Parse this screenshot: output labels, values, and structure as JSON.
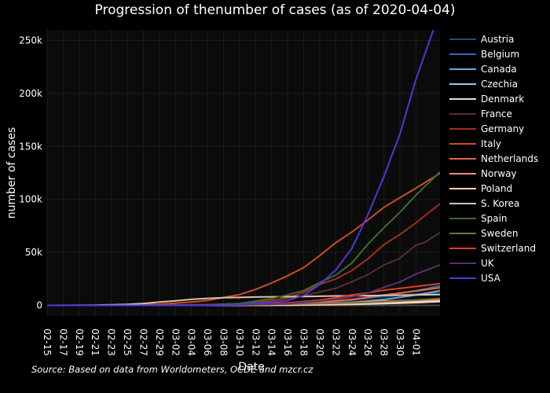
{
  "chart_data": {
    "type": "line",
    "title": "Progression of thenumber of cases (as of 2020-04-04)",
    "xlabel": "Date",
    "ylabel": "number of cases",
    "xlim": [
      "2020-02-15",
      "2020-04-04"
    ],
    "ylim": [
      -10000,
      260000
    ],
    "y_ticks": [
      0,
      50000,
      100000,
      150000,
      200000,
      250000
    ],
    "y_tick_labels": [
      "0",
      "50k",
      "100k",
      "150k",
      "200k",
      "250k"
    ],
    "x_tick_labels": [
      "02-15",
      "02-17",
      "02-19",
      "02-21",
      "02-23",
      "02-25",
      "02-27",
      "02-29",
      "03-02",
      "03-04",
      "03-06",
      "03-08",
      "03-10",
      "03-12",
      "03-14",
      "03-16",
      "03-18",
      "03-20",
      "03-22",
      "03-24",
      "03-26",
      "03-28",
      "03-30",
      "04-01"
    ],
    "grid": true,
    "legend_position": "right",
    "background": "#000000",
    "series": [
      {
        "name": "Austria",
        "color": "#1f4e79",
        "points": [
          [
            "03-01",
            10
          ],
          [
            "03-10",
            180
          ],
          [
            "03-16",
            1000
          ],
          [
            "03-20",
            2400
          ],
          [
            "03-24",
            5300
          ],
          [
            "03-28",
            8300
          ],
          [
            "04-01",
            10700
          ],
          [
            "04-04",
            11800
          ]
        ]
      },
      {
        "name": "Belgium",
        "color": "#2e6db4",
        "points": [
          [
            "03-01",
            2
          ],
          [
            "03-10",
            270
          ],
          [
            "03-16",
            1100
          ],
          [
            "03-20",
            2800
          ],
          [
            "03-24",
            4900
          ],
          [
            "03-28",
            9100
          ],
          [
            "04-01",
            13900
          ],
          [
            "04-04",
            18400
          ]
        ]
      },
      {
        "name": "Canada",
        "color": "#6fa8dc",
        "points": [
          [
            "03-01",
            20
          ],
          [
            "03-10",
            90
          ],
          [
            "03-16",
            420
          ],
          [
            "03-20",
            1000
          ],
          [
            "03-24",
            2800
          ],
          [
            "03-28",
            5600
          ],
          [
            "04-01",
            9700
          ],
          [
            "04-04",
            13900
          ]
        ]
      },
      {
        "name": "Czechia",
        "color": "#9fc5e8",
        "points": [
          [
            "03-01",
            3
          ],
          [
            "03-10",
            40
          ],
          [
            "03-16",
            300
          ],
          [
            "03-20",
            830
          ],
          [
            "03-24",
            1650
          ],
          [
            "03-28",
            2650
          ],
          [
            "04-01",
            3600
          ],
          [
            "04-04",
            4600
          ]
        ]
      },
      {
        "name": "Denmark",
        "color": "#cfe2f3",
        "points": [
          [
            "03-01",
            4
          ],
          [
            "03-10",
            260
          ],
          [
            "03-16",
            900
          ],
          [
            "03-20",
            1200
          ],
          [
            "03-24",
            1700
          ],
          [
            "03-28",
            2300
          ],
          [
            "04-01",
            3100
          ],
          [
            "04-04",
            4000
          ]
        ]
      },
      {
        "name": "France",
        "color": "#5a2e2e",
        "points": [
          [
            "02-15",
            12
          ],
          [
            "03-01",
            130
          ],
          [
            "03-06",
            650
          ],
          [
            "03-10",
            1800
          ],
          [
            "03-14",
            4500
          ],
          [
            "03-16",
            6600
          ],
          [
            "03-18",
            9100
          ],
          [
            "03-20",
            12600
          ],
          [
            "03-22",
            16000
          ],
          [
            "03-24",
            22300
          ],
          [
            "03-26",
            29100
          ],
          [
            "03-28",
            38100
          ],
          [
            "03-30",
            44500
          ],
          [
            "04-01",
            57000
          ],
          [
            "04-02",
            59000
          ],
          [
            "04-04",
            68600
          ]
        ]
      },
      {
        "name": "Germany",
        "color": "#a0301a",
        "points": [
          [
            "02-15",
            16
          ],
          [
            "03-01",
            130
          ],
          [
            "03-06",
            670
          ],
          [
            "03-10",
            1560
          ],
          [
            "03-14",
            4600
          ],
          [
            "03-16",
            7300
          ],
          [
            "03-18",
            12300
          ],
          [
            "03-20",
            19800
          ],
          [
            "03-22",
            24900
          ],
          [
            "03-24",
            32900
          ],
          [
            "03-26",
            43900
          ],
          [
            "03-28",
            57300
          ],
          [
            "03-30",
            66900
          ],
          [
            "04-01",
            77900
          ],
          [
            "04-04",
            96000
          ]
        ]
      },
      {
        "name": "Italy",
        "color": "#d04a20",
        "points": [
          [
            "02-15",
            3
          ],
          [
            "02-21",
            20
          ],
          [
            "02-23",
            155
          ],
          [
            "02-25",
            320
          ],
          [
            "02-27",
            650
          ],
          [
            "02-29",
            1130
          ],
          [
            "03-02",
            2000
          ],
          [
            "03-04",
            3100
          ],
          [
            "03-06",
            4640
          ],
          [
            "03-08",
            7400
          ],
          [
            "03-10",
            10150
          ],
          [
            "03-12",
            15100
          ],
          [
            "03-14",
            21160
          ],
          [
            "03-16",
            27980
          ],
          [
            "03-18",
            35700
          ],
          [
            "03-20",
            47000
          ],
          [
            "03-22",
            59140
          ],
          [
            "03-24",
            69200
          ],
          [
            "03-26",
            80600
          ],
          [
            "03-28",
            92500
          ],
          [
            "03-30",
            101700
          ],
          [
            "04-01",
            110600
          ],
          [
            "04-04",
            124600
          ]
        ]
      },
      {
        "name": "Netherlands",
        "color": "#e06848",
        "points": [
          [
            "03-01",
            10
          ],
          [
            "03-10",
            380
          ],
          [
            "03-16",
            1400
          ],
          [
            "03-20",
            2990
          ],
          [
            "03-24",
            5560
          ],
          [
            "03-28",
            9760
          ],
          [
            "04-01",
            13600
          ],
          [
            "04-04",
            16600
          ]
        ]
      },
      {
        "name": "Norway",
        "color": "#f08e88",
        "points": [
          [
            "03-01",
            15
          ],
          [
            "03-10",
            190
          ],
          [
            "03-16",
            1250
          ],
          [
            "03-20",
            1900
          ],
          [
            "03-24",
            2800
          ],
          [
            "03-28",
            4100
          ],
          [
            "04-01",
            4800
          ],
          [
            "04-04",
            5500
          ]
        ]
      },
      {
        "name": "Poland",
        "color": "#f7d2b0",
        "points": [
          [
            "03-04",
            1
          ],
          [
            "03-10",
            20
          ],
          [
            "03-16",
            150
          ],
          [
            "03-20",
            430
          ],
          [
            "03-24",
            900
          ],
          [
            "03-28",
            1640
          ],
          [
            "04-01",
            2550
          ],
          [
            "04-04",
            3600
          ]
        ]
      },
      {
        "name": "S. Korea",
        "color": "#d9c0aa",
        "points": [
          [
            "02-15",
            28
          ],
          [
            "02-19",
            51
          ],
          [
            "02-21",
            204
          ],
          [
            "02-23",
            602
          ],
          [
            "02-25",
            977
          ],
          [
            "02-27",
            1766
          ],
          [
            "02-29",
            3150
          ],
          [
            "03-02",
            4335
          ],
          [
            "03-04",
            5621
          ],
          [
            "03-06",
            6593
          ],
          [
            "03-08",
            7313
          ],
          [
            "03-10",
            7513
          ],
          [
            "03-12",
            7869
          ],
          [
            "03-14",
            8086
          ],
          [
            "03-16",
            8236
          ],
          [
            "03-18",
            8413
          ],
          [
            "03-20",
            8652
          ],
          [
            "03-22",
            8897
          ],
          [
            "03-24",
            9037
          ],
          [
            "03-26",
            9241
          ],
          [
            "03-28",
            9478
          ],
          [
            "03-30",
            9661
          ],
          [
            "04-01",
            9887
          ],
          [
            "04-04",
            10156
          ]
        ]
      },
      {
        "name": "Spain",
        "color": "#3d6b2e",
        "points": [
          [
            "02-15",
            2
          ],
          [
            "03-01",
            84
          ],
          [
            "03-06",
            400
          ],
          [
            "03-10",
            1700
          ],
          [
            "03-14",
            6400
          ],
          [
            "03-16",
            9900
          ],
          [
            "03-18",
            14000
          ],
          [
            "03-20",
            21500
          ],
          [
            "03-22",
            28600
          ],
          [
            "03-24",
            39900
          ],
          [
            "03-26",
            57800
          ],
          [
            "03-28",
            73200
          ],
          [
            "03-30",
            87900
          ],
          [
            "04-01",
            104100
          ],
          [
            "04-04",
            126000
          ]
        ]
      },
      {
        "name": "Sweden",
        "color": "#7a6f3a",
        "points": [
          [
            "03-01",
            14
          ],
          [
            "03-10",
            360
          ],
          [
            "03-16",
            1100
          ],
          [
            "03-20",
            1640
          ],
          [
            "03-24",
            2300
          ],
          [
            "03-28",
            3450
          ],
          [
            "04-01",
            4950
          ],
          [
            "04-04",
            6440
          ]
        ]
      },
      {
        "name": "Switzerland",
        "color": "#e04020",
        "points": [
          [
            "03-01",
            30
          ],
          [
            "03-10",
            500
          ],
          [
            "03-16",
            2300
          ],
          [
            "03-20",
            4800
          ],
          [
            "03-22",
            7200
          ],
          [
            "03-24",
            9800
          ],
          [
            "03-26",
            11800
          ],
          [
            "03-28",
            14300
          ],
          [
            "04-01",
            17800
          ],
          [
            "04-04",
            20500
          ]
        ]
      },
      {
        "name": "UK",
        "color": "#5a2f6e",
        "points": [
          [
            "02-15",
            9
          ],
          [
            "03-01",
            35
          ],
          [
            "03-10",
            370
          ],
          [
            "03-16",
            1540
          ],
          [
            "03-20",
            3980
          ],
          [
            "03-22",
            5680
          ],
          [
            "03-24",
            8080
          ],
          [
            "03-26",
            11650
          ],
          [
            "03-28",
            17090
          ],
          [
            "03-30",
            22140
          ],
          [
            "04-01",
            29500
          ],
          [
            "04-04",
            38200
          ]
        ]
      },
      {
        "name": "USA",
        "color": "#4b39d8",
        "points": [
          [
            "02-15",
            15
          ],
          [
            "03-01",
            75
          ],
          [
            "03-06",
            250
          ],
          [
            "03-10",
            1000
          ],
          [
            "03-14",
            2900
          ],
          [
            "03-16",
            4600
          ],
          [
            "03-18",
            9400
          ],
          [
            "03-20",
            19600
          ],
          [
            "03-22",
            33300
          ],
          [
            "03-24",
            53700
          ],
          [
            "03-26",
            85400
          ],
          [
            "03-28",
            121500
          ],
          [
            "03-30",
            161800
          ],
          [
            "04-01",
            213300
          ],
          [
            "04-04",
            277900
          ]
        ]
      }
    ]
  },
  "source_note": "Source: Based on data from Worldometers, OCDE and mzcr.cz"
}
